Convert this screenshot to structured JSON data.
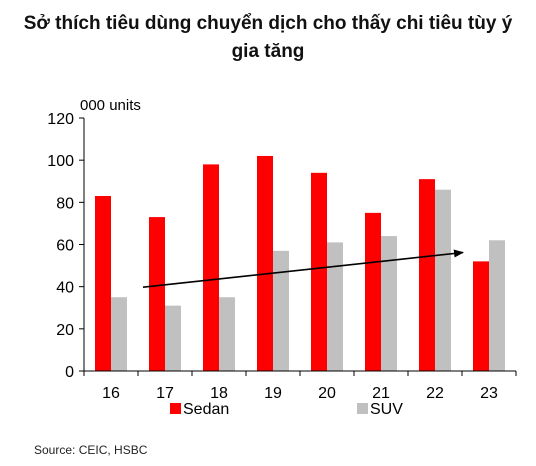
{
  "title_lines": [
    "Sở thích tiêu dùng chuyển dịch cho thấy chi tiêu tùy ý",
    "gia tăng"
  ],
  "source": "Source: CEIC, HSBC",
  "colors": {
    "sedan": "#ff0000",
    "suv": "#c0c0c0",
    "arrow": "#000000"
  },
  "chart_data": {
    "type": "bar",
    "categories": [
      "16",
      "17",
      "18",
      "19",
      "20",
      "21",
      "22",
      "23"
    ],
    "series": [
      {
        "name": "Sedan",
        "values": [
          83,
          73,
          98,
          102,
          94,
          75,
          91,
          52
        ]
      },
      {
        "name": "SUV",
        "values": [
          35,
          31,
          35,
          57,
          61,
          64,
          86,
          62
        ]
      }
    ],
    "ylabel": "000 units",
    "ylim": [
      0,
      120
    ],
    "yticks": [
      0,
      20,
      40,
      60,
      80,
      100,
      120
    ],
    "legend_position": "bottom",
    "grid": false,
    "annotations": [
      {
        "type": "arrow",
        "from": {
          "x": "17",
          "y": 35
        },
        "to": {
          "x": "22",
          "y": 60
        }
      }
    ]
  }
}
